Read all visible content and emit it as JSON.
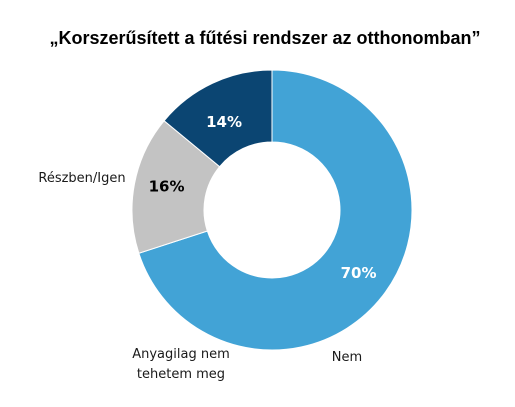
{
  "chart_data": {
    "type": "pie",
    "title": "„Korszerűsített a fűtési rendszer az otthonomban”",
    "categories": [
      "Részben/Igen",
      "Nem",
      "Anyagilag nem tehetem meg"
    ],
    "values": [
      70,
      16,
      14
    ],
    "value_labels": [
      "70%",
      "16%",
      "14%"
    ],
    "colors": [
      "#42a3d6",
      "#c3c3c3",
      "#0b4572"
    ],
    "label_colors": [
      "#ffffff",
      "#000000",
      "#ffffff"
    ],
    "category_label_lines": [
      [
        "Részben/Igen"
      ],
      [
        "Nem"
      ],
      [
        "Anyagilag nem",
        "tehetem meg"
      ]
    ],
    "donut": true,
    "legend": "none"
  }
}
